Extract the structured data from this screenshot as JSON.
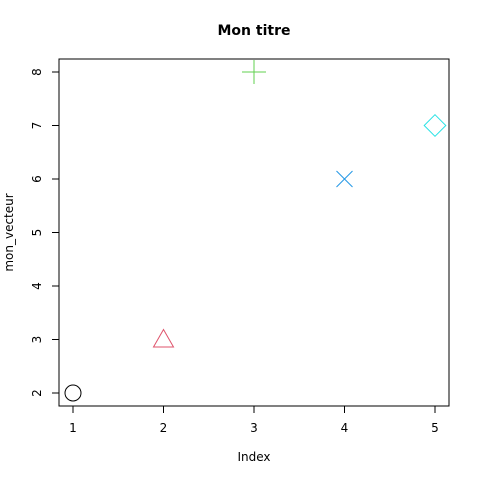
{
  "chart_data": {
    "type": "scatter",
    "title": "Mon titre",
    "xlabel": "Index",
    "ylabel": "mon_vecteur",
    "xlim": [
      1,
      5
    ],
    "ylim": [
      2,
      8
    ],
    "x_ticks": [
      "1",
      "2",
      "3",
      "4",
      "5"
    ],
    "y_ticks": [
      "2",
      "3",
      "4",
      "5",
      "6",
      "7",
      "8"
    ],
    "grid": false,
    "legend": "none",
    "points": [
      {
        "x": 1,
        "y": 2,
        "marker": "circle",
        "color": "#000000"
      },
      {
        "x": 2,
        "y": 3,
        "marker": "triangle",
        "color": "#DF536B"
      },
      {
        "x": 3,
        "y": 8,
        "marker": "plus",
        "color": "#61D04F"
      },
      {
        "x": 4,
        "y": 6,
        "marker": "cross",
        "color": "#2297E6"
      },
      {
        "x": 5,
        "y": 7,
        "marker": "diamond",
        "color": "#28E2E5"
      }
    ]
  }
}
